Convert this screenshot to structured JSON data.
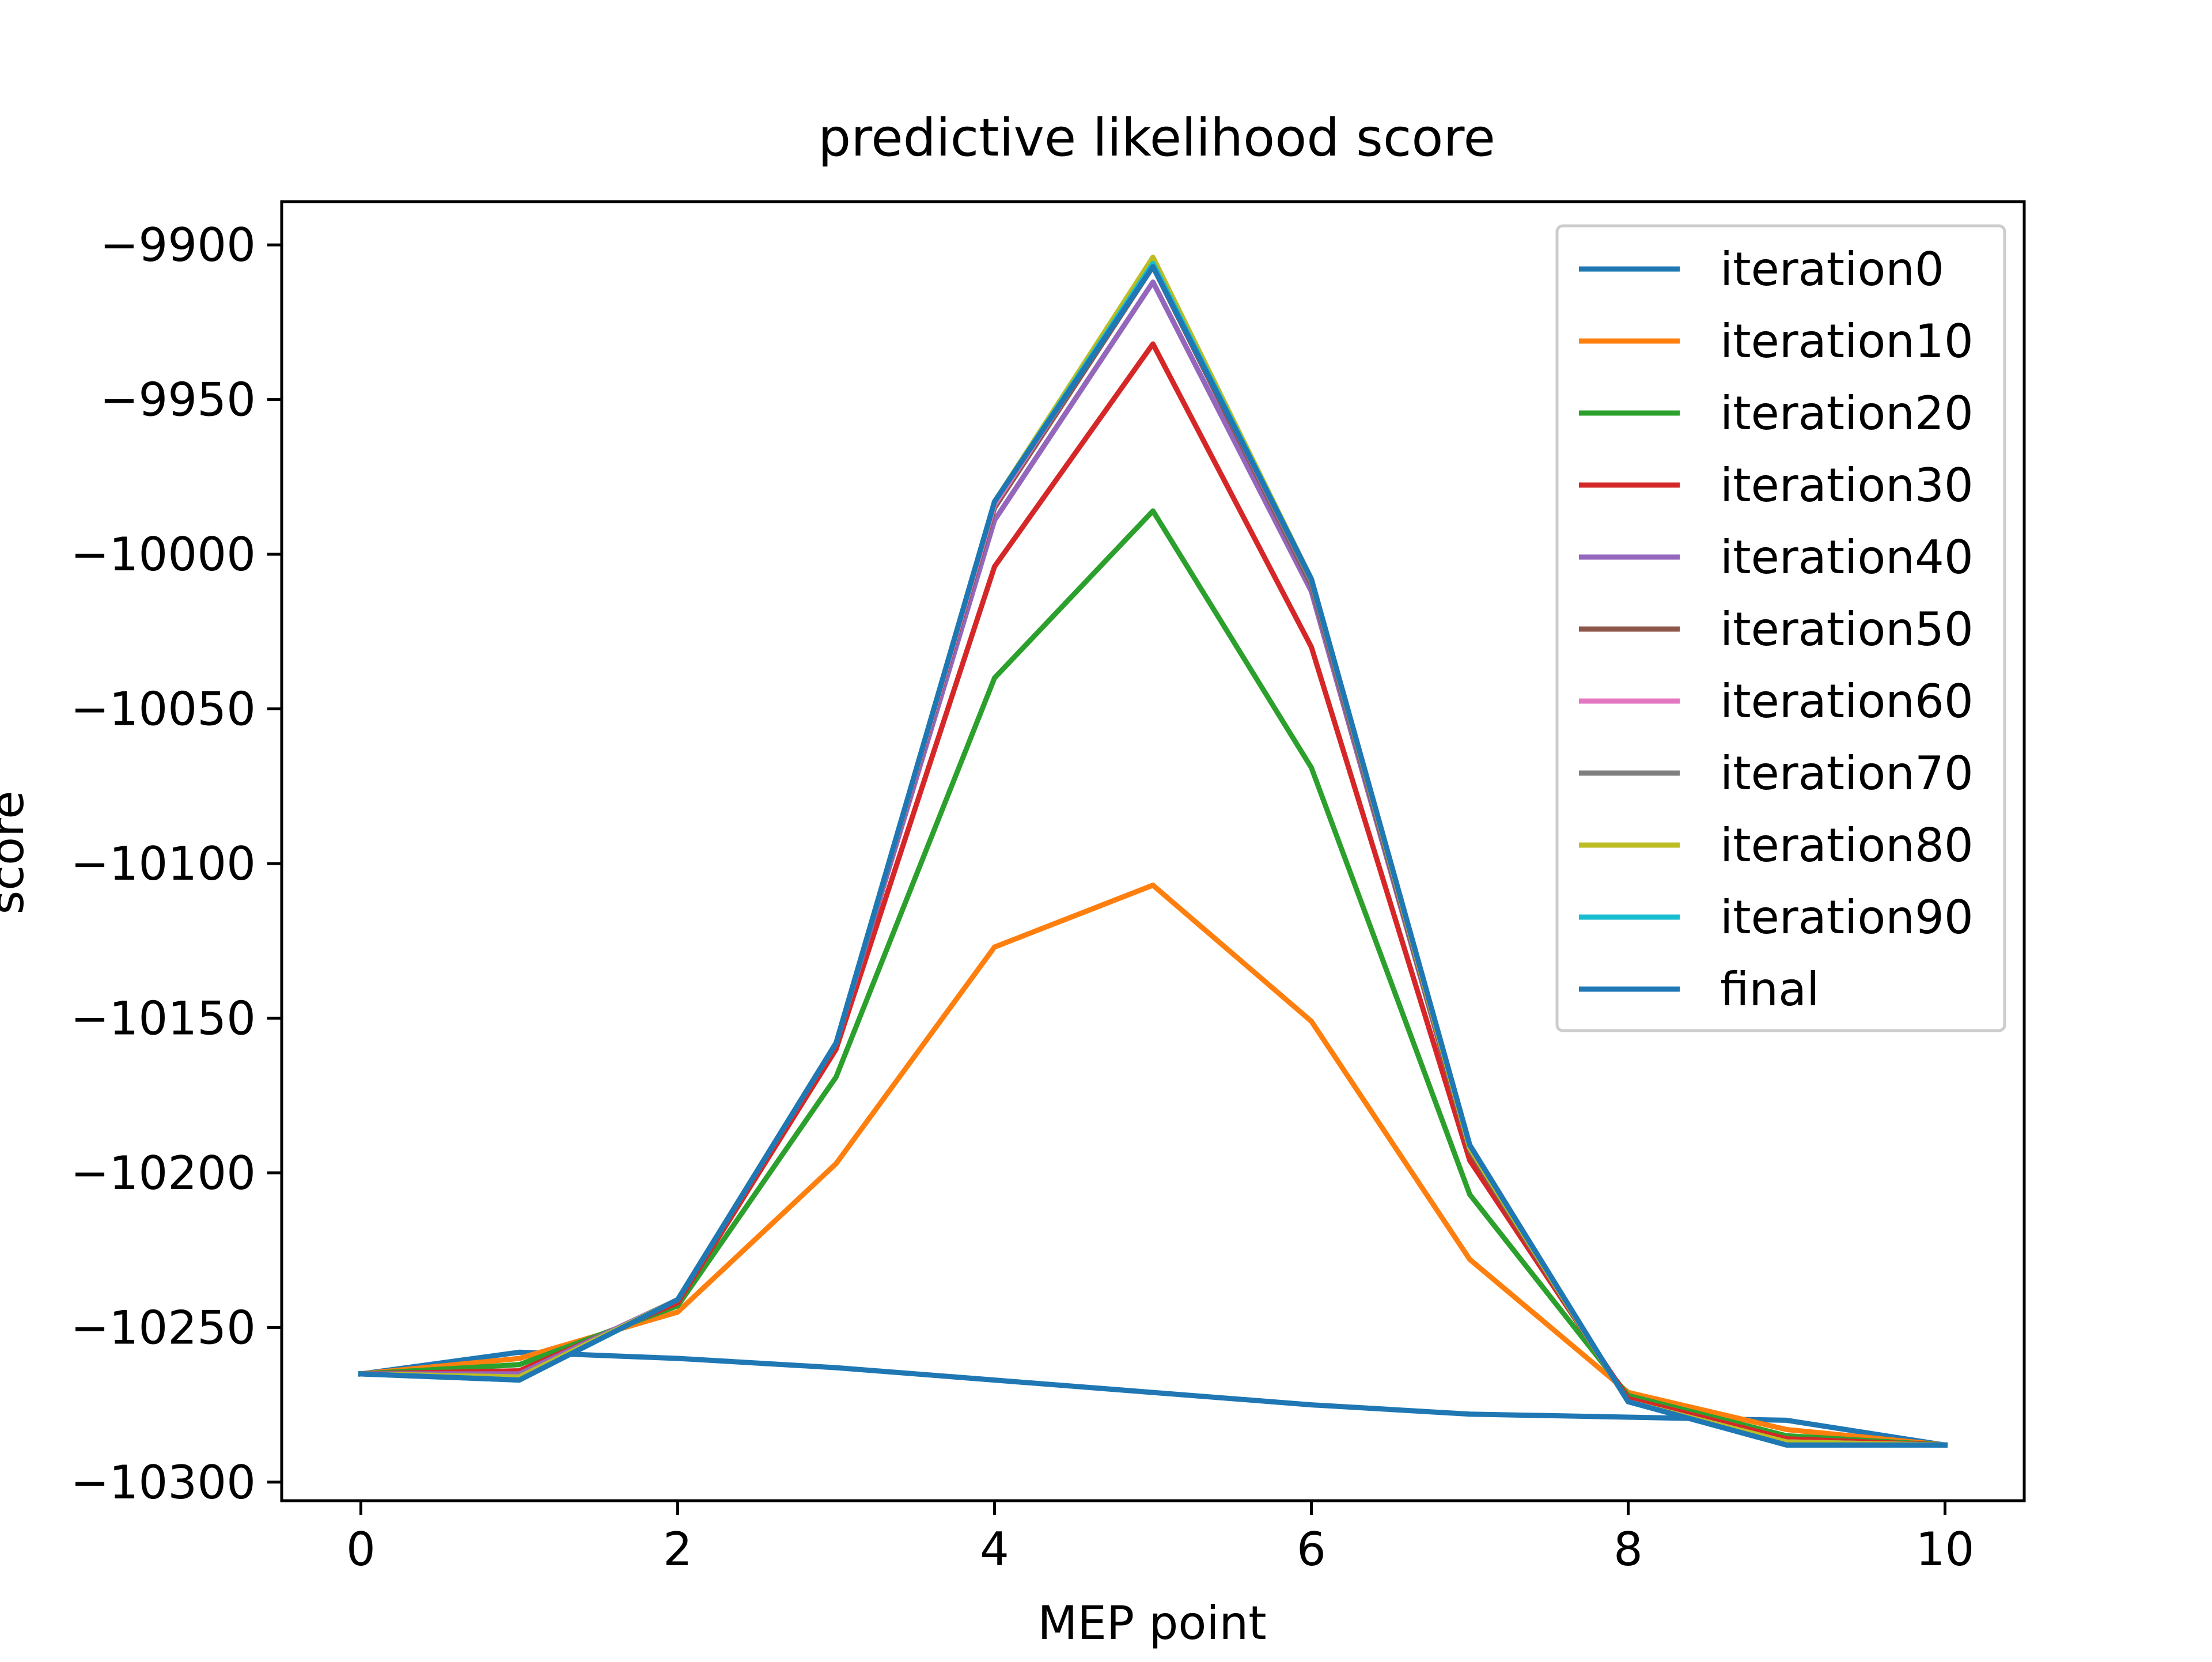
{
  "chart_data": {
    "type": "line",
    "title": "predictive likelihood score",
    "xlabel": "MEP point",
    "ylabel": "score",
    "xlim": [
      -0.5,
      10.5
    ],
    "ylim": [
      -10306,
      -9886
    ],
    "x": [
      0,
      1,
      2,
      3,
      4,
      5,
      6,
      7,
      8,
      9,
      10
    ],
    "xticks": [
      0,
      2,
      4,
      6,
      8,
      10
    ],
    "yticks": [
      -9900,
      -9950,
      -10000,
      -10050,
      -10100,
      -10150,
      -10200,
      -10250,
      -10300
    ],
    "grid": false,
    "legend_position": "upper right",
    "series": [
      {
        "name": "iteration0",
        "color": "#1f77b4",
        "values": [
          -10265,
          -10258,
          -10260,
          -10263,
          -10267,
          -10271,
          -10275,
          -10278,
          -10279,
          -10280,
          -10288
        ]
      },
      {
        "name": "iteration10",
        "color": "#ff7f0e",
        "values": [
          -10265,
          -10260,
          -10245,
          -10197,
          -10127,
          -10107,
          -10151,
          -10228,
          -10271,
          -10283,
          -10288
        ]
      },
      {
        "name": "iteration20",
        "color": "#2ca02c",
        "values": [
          -10265,
          -10262,
          -10243,
          -10169,
          -10040,
          -9986,
          -10069,
          -10207,
          -10272,
          -10285,
          -10288
        ]
      },
      {
        "name": "iteration30",
        "color": "#d62728",
        "values": [
          -10265,
          -10264,
          -10242,
          -10160,
          -10004,
          -9932,
          -10030,
          -10196,
          -10273,
          -10286,
          -10288
        ]
      },
      {
        "name": "iteration40",
        "color": "#9467bd",
        "values": [
          -10265,
          -10265,
          -10241,
          -10158,
          -9989,
          -9912,
          -10012,
          -10193,
          -10274,
          -10287,
          -10288
        ]
      },
      {
        "name": "iteration50",
        "color": "#8c564b",
        "values": [
          -10265,
          -10266,
          -10241,
          -10158,
          -9985,
          -9907,
          -10010,
          -10193,
          -10274,
          -10287,
          -10288
        ]
      },
      {
        "name": "iteration60",
        "color": "#e377c2",
        "values": [
          -10265,
          -10266,
          -10241,
          -10158,
          -9984,
          -9906,
          -10009,
          -10192,
          -10274,
          -10287,
          -10288
        ]
      },
      {
        "name": "iteration70",
        "color": "#7f7f7f",
        "values": [
          -10265,
          -10266,
          -10241,
          -10158,
          -9983,
          -9905,
          -10009,
          -10192,
          -10274,
          -10287,
          -10288
        ]
      },
      {
        "name": "iteration80",
        "color": "#bcbd22",
        "values": [
          -10265,
          -10266,
          -10241,
          -10158,
          -9983,
          -9904,
          -10008,
          -10192,
          -10274,
          -10287,
          -10288
        ]
      },
      {
        "name": "iteration90",
        "color": "#17becf",
        "values": [
          -10265,
          -10267,
          -10241,
          -10158,
          -9983,
          -9906,
          -10008,
          -10191,
          -10274,
          -10288,
          -10288
        ]
      },
      {
        "name": "final",
        "color": "#1f77b4",
        "values": [
          -10265,
          -10267,
          -10241,
          -10158,
          -9983,
          -9907,
          -10008,
          -10191,
          -10274,
          -10288,
          -10288
        ]
      }
    ]
  }
}
